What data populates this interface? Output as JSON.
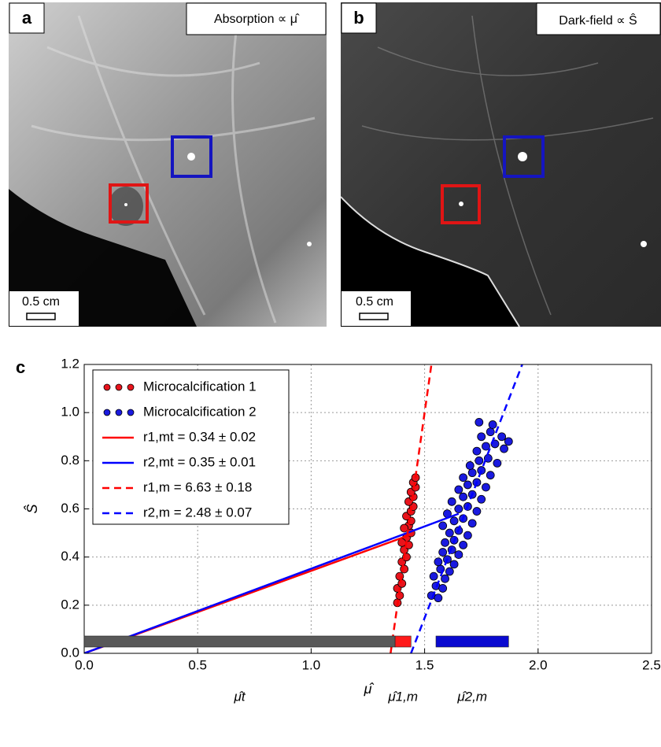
{
  "panel_a": {
    "label": "a",
    "caption": "Absorption ∝ μ̂",
    "scale_bar": "0.5 cm"
  },
  "panel_b": {
    "label": "b",
    "caption": "Dark-field ∝ Ŝ",
    "scale_bar": "0.5 cm"
  },
  "chart_data": {
    "type": "scatter",
    "panel_label": "c",
    "xlabel": "μ̂",
    "ylabel": "Ŝ",
    "xlim": [
      0,
      2.5
    ],
    "ylim": [
      0,
      1.2
    ],
    "xticks": [
      {
        "value": 0,
        "label": "0.0"
      },
      0.5,
      {
        "value": 1,
        "label": "1.0"
      },
      1.5,
      {
        "value": 2,
        "label": "2.0"
      },
      2.5
    ],
    "yticks": [
      {
        "value": 0,
        "label": "0.0"
      },
      0.2,
      0.4,
      0.6,
      0.8,
      {
        "value": 1,
        "label": "1.0"
      },
      1.2
    ],
    "grid": true,
    "legend": "upper left",
    "series": [
      {
        "name": "Microcalcification 1",
        "kind": "points",
        "color": "#e8141c",
        "x": [
          1.38,
          1.39,
          1.38,
          1.4,
          1.39,
          1.41,
          1.4,
          1.42,
          1.41,
          1.43,
          1.42,
          1.44,
          1.43,
          1.44,
          1.42,
          1.44,
          1.45,
          1.43,
          1.45,
          1.44,
          1.46,
          1.45,
          1.46,
          1.4,
          1.41
        ],
        "values": [
          0.21,
          0.24,
          0.27,
          0.29,
          0.32,
          0.35,
          0.38,
          0.4,
          0.43,
          0.45,
          0.48,
          0.5,
          0.53,
          0.55,
          0.57,
          0.59,
          0.61,
          0.63,
          0.65,
          0.67,
          0.69,
          0.71,
          0.73,
          0.46,
          0.52
        ]
      },
      {
        "name": "Microcalcification 2",
        "kind": "points",
        "color": "#1a1adf",
        "x": [
          1.53,
          1.56,
          1.55,
          1.58,
          1.54,
          1.59,
          1.57,
          1.61,
          1.56,
          1.6,
          1.63,
          1.58,
          1.62,
          1.65,
          1.59,
          1.63,
          1.67,
          1.61,
          1.65,
          1.69,
          1.58,
          1.63,
          1.67,
          1.71,
          1.6,
          1.65,
          1.69,
          1.73,
          1.62,
          1.67,
          1.71,
          1.75,
          1.65,
          1.69,
          1.73,
          1.77,
          1.67,
          1.71,
          1.75,
          1.79,
          1.7,
          1.74,
          1.78,
          1.82,
          1.73,
          1.77,
          1.81,
          1.85,
          1.75,
          1.79,
          1.74,
          1.8,
          1.84,
          1.87
        ],
        "values": [
          0.24,
          0.23,
          0.28,
          0.27,
          0.32,
          0.31,
          0.35,
          0.34,
          0.38,
          0.39,
          0.37,
          0.42,
          0.43,
          0.41,
          0.46,
          0.47,
          0.45,
          0.5,
          0.51,
          0.49,
          0.53,
          0.55,
          0.56,
          0.54,
          0.58,
          0.6,
          0.61,
          0.59,
          0.63,
          0.65,
          0.66,
          0.64,
          0.68,
          0.7,
          0.71,
          0.69,
          0.73,
          0.75,
          0.76,
          0.74,
          0.78,
          0.8,
          0.81,
          0.79,
          0.84,
          0.86,
          0.87,
          0.85,
          0.9,
          0.92,
          0.96,
          0.95,
          0.9,
          0.88
        ]
      },
      {
        "name": "r1,mt = 0.34 ± 0.02",
        "kind": "line",
        "linestyle": "solid",
        "color": "#ff0000",
        "x": [
          0,
          1.43
        ],
        "values": [
          0,
          0.49
        ]
      },
      {
        "name": "r2,mt = 0.35 ± 0.01",
        "kind": "line",
        "linestyle": "solid",
        "color": "#0000ff",
        "x": [
          0,
          1.65
        ],
        "values": [
          0,
          0.58
        ]
      },
      {
        "name": "r1,m = 6.63 ± 0.18",
        "kind": "line",
        "linestyle": "dashed",
        "color": "#ff0000",
        "x": [
          1.35,
          1.53
        ],
        "values": [
          0,
          1.2
        ]
      },
      {
        "name": "r2,m = 2.48 ± 0.07",
        "kind": "line",
        "linestyle": "dashed",
        "color": "#0000ff",
        "x": [
          1.44,
          1.93
        ],
        "values": [
          0,
          1.2
        ]
      }
    ],
    "ranges": [
      {
        "label": "μ̂t",
        "start": 0,
        "end": 1.37,
        "color": "#595959"
      },
      {
        "label": "μ̂1,m",
        "start": 1.37,
        "end": 1.44,
        "color": "#ff1a1a"
      },
      {
        "label": "μ̂2,m",
        "start": 1.55,
        "end": 1.87,
        "color": "#0a0ad0"
      }
    ]
  }
}
